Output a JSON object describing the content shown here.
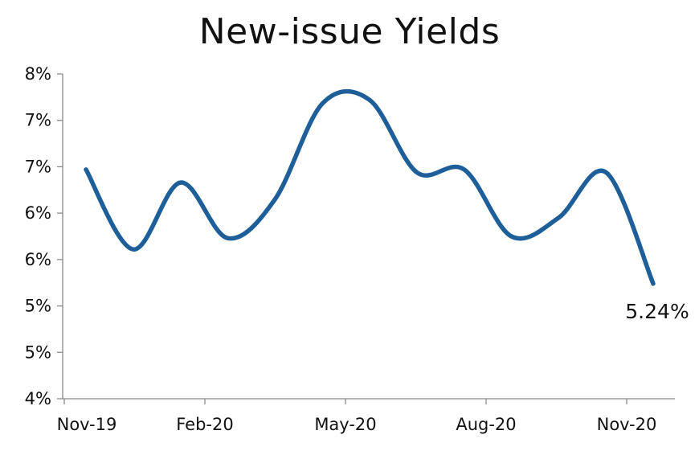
{
  "chart_data": {
    "type": "line",
    "title": "New-issue Yields",
    "xlabel": "",
    "ylabel": "",
    "x_tick_labels": [
      "Nov-19",
      "Feb-20",
      "May-20",
      "Aug-20",
      "Nov-20"
    ],
    "y_tick_labels": [
      "4%",
      "5%",
      "5%",
      "6%",
      "6%",
      "7%",
      "7%",
      "8%"
    ],
    "ylim": [
      4.0,
      7.5
    ],
    "grid": false,
    "legend": "none",
    "series": [
      {
        "color": "#1f5f99",
        "x": [
          0,
          1,
          2,
          3,
          4,
          5,
          6,
          7,
          8,
          9,
          10,
          11,
          12
        ],
        "values": [
          6.47,
          5.61,
          6.33,
          5.73,
          6.15,
          7.18,
          7.22,
          6.44,
          6.47,
          5.75,
          5.95,
          6.44,
          5.24
        ]
      }
    ],
    "end_label": "5.24%"
  }
}
